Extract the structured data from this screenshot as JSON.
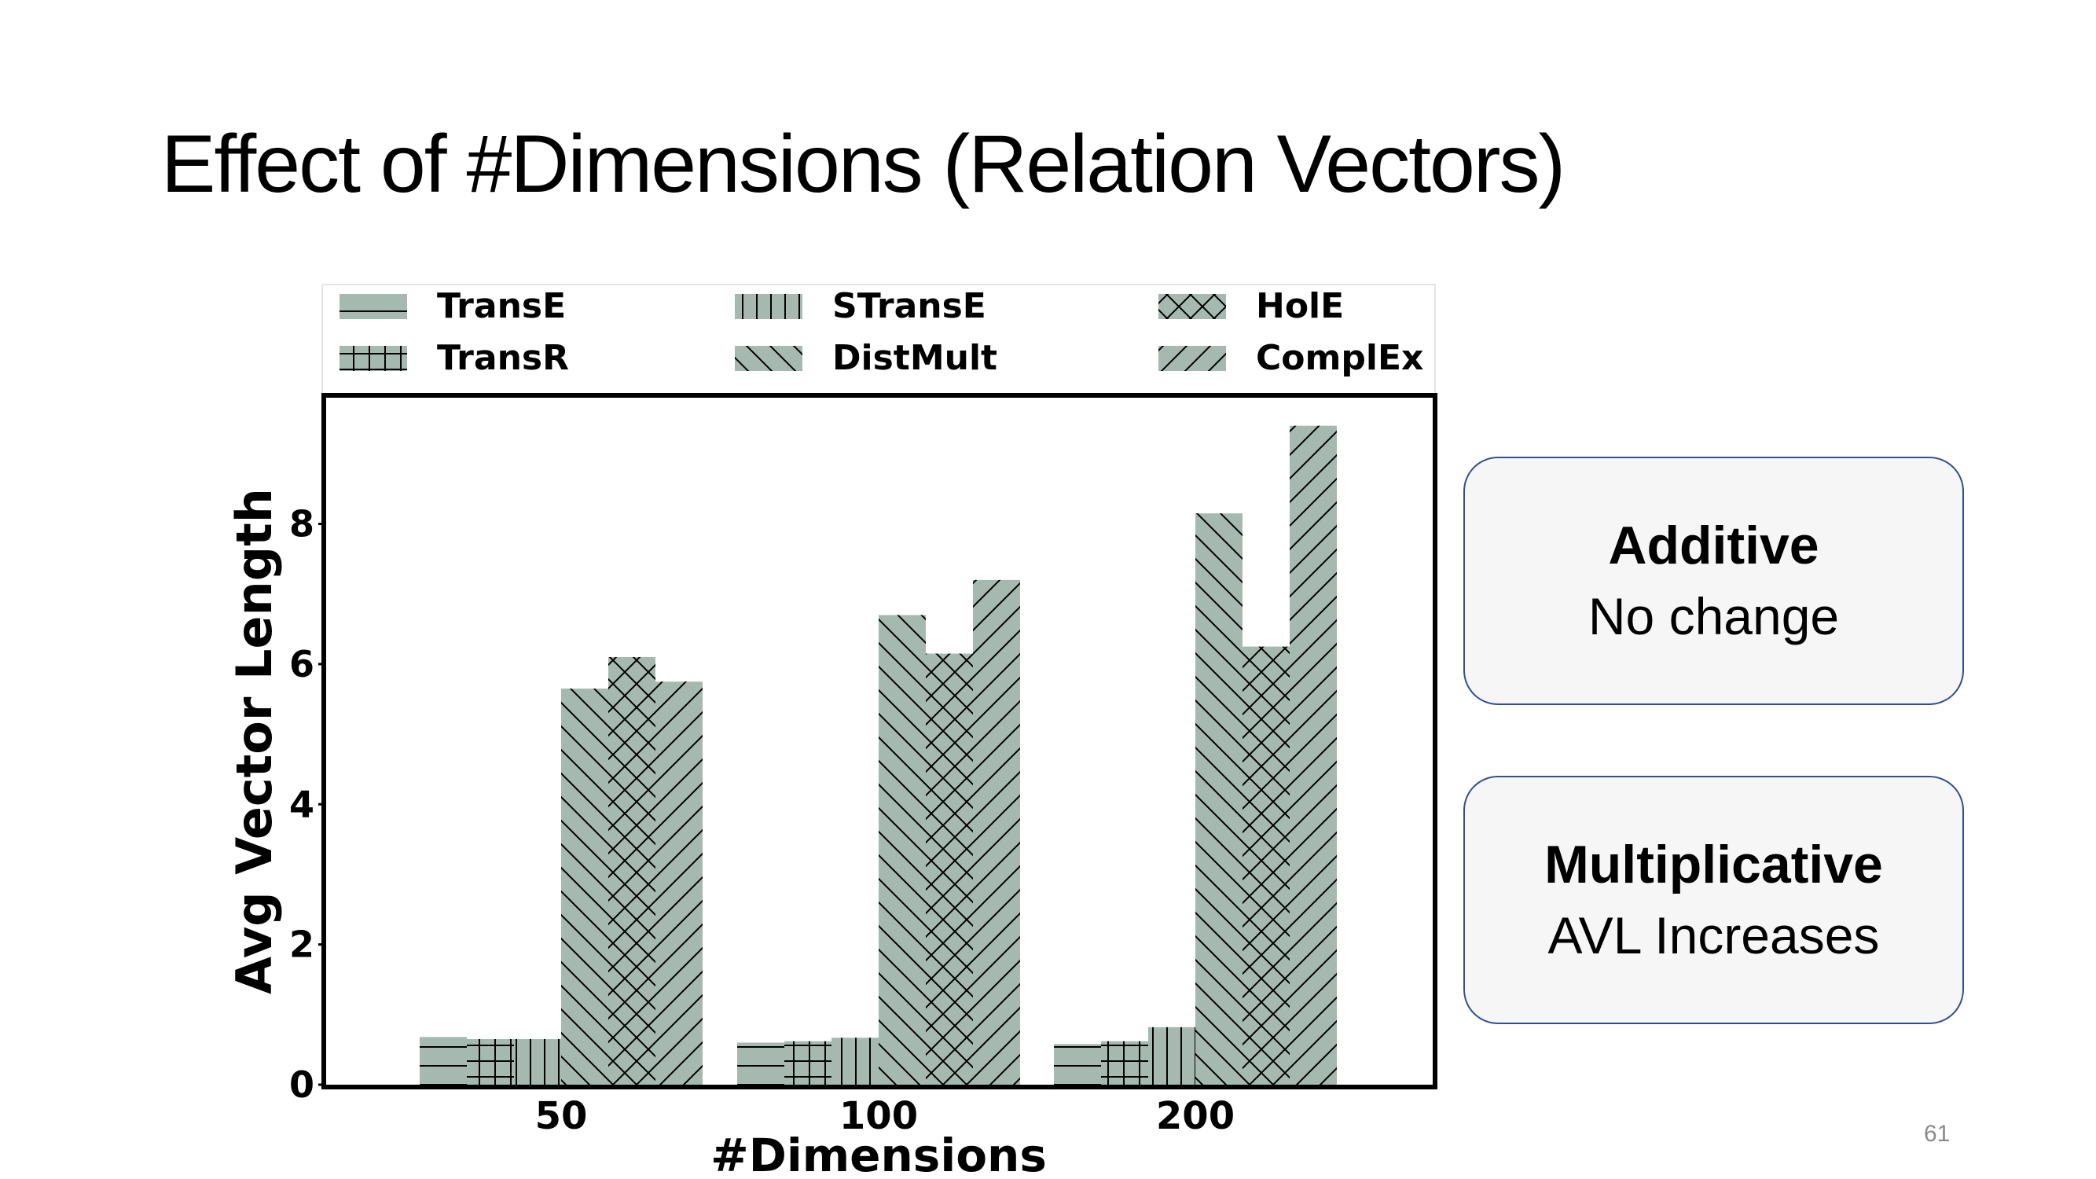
{
  "slide": {
    "title": "Effect of #Dimensions (Relation Vectors)",
    "page_number": "61"
  },
  "callouts": [
    {
      "heading": "Additive",
      "text": "No change"
    },
    {
      "heading": "Multiplicative",
      "text": "AVL Increases"
    }
  ],
  "chart_data": {
    "type": "bar",
    "title": "",
    "xlabel": "#Dimensions",
    "ylabel": "Avg Vector Length",
    "categories": [
      "50",
      "100",
      "200"
    ],
    "ylim": [
      0,
      9.8
    ],
    "yticks": [
      "0",
      "2",
      "4",
      "6",
      "8"
    ],
    "grid": false,
    "legend_position": "top",
    "bar_color": "#a5b9b1",
    "series": [
      {
        "name": "TransE",
        "hatch": "horizontal",
        "values": [
          0.68,
          0.6,
          0.58
        ]
      },
      {
        "name": "TransR",
        "hatch": "grid",
        "values": [
          0.65,
          0.62,
          0.62
        ]
      },
      {
        "name": "STransE",
        "hatch": "vertical",
        "values": [
          0.65,
          0.67,
          0.82
        ]
      },
      {
        "name": "DistMult",
        "hatch": "backslash",
        "values": [
          5.65,
          6.7,
          8.15
        ]
      },
      {
        "name": "HolE",
        "hatch": "cross",
        "values": [
          6.1,
          6.15,
          6.25
        ]
      },
      {
        "name": "ComplEx",
        "hatch": "slash",
        "values": [
          5.75,
          7.2,
          9.4
        ]
      }
    ]
  }
}
